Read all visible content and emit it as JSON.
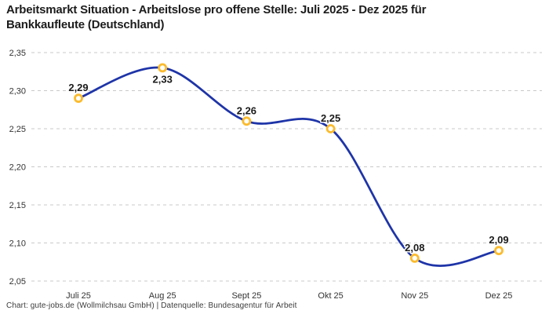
{
  "header": {
    "title_lines": [
      "Arbeitsmarkt Situation - Arbeitslose pro offene Stelle: Juli 2025 - Dez 2025 für",
      "Bankkaufleute (Deutschland)"
    ]
  },
  "footer": {
    "attribution": "Chart: gute-jobs.de (Wollmilchsau GmbH) | Datenquelle: Bundesagentur für Arbeit"
  },
  "chart_data": {
    "type": "line",
    "title": "Arbeitsmarkt Situation - Arbeitslose pro offene Stelle: Juli 2025 - Dez 2025 für Bankkaufleute (Deutschland)",
    "categories": [
      "Juli 25",
      "Aug 25",
      "Sept 25",
      "Okt 25",
      "Nov 25",
      "Dez 25"
    ],
    "values": [
      2.29,
      2.33,
      2.26,
      2.25,
      2.08,
      2.09
    ],
    "point_labels": [
      "2,29",
      "2,33",
      "2,26",
      "2,25",
      "2,08",
      "2,09"
    ],
    "point_label_position": [
      "above",
      "below",
      "above",
      "above",
      "above",
      "above"
    ],
    "y_tick_values": [
      2.35,
      2.3,
      2.25,
      2.2,
      2.15,
      2.1,
      2.05
    ],
    "y_tick_labels": [
      "2,35",
      "2,30",
      "2,25",
      "2,20",
      "2,15",
      "2,10",
      "2,05"
    ],
    "ylim": [
      2.05,
      2.35
    ],
    "xlabel": "",
    "ylabel": "",
    "grid": "horizontal-dashed",
    "legend": "none",
    "colors": {
      "line": "#1e34a8",
      "marker_ring": "#fbbb2d",
      "marker_fill": "#ffffff",
      "gridline": "#c9c9c9",
      "axis_text": "#333333",
      "point_label_text": "#1a1a1a"
    }
  }
}
